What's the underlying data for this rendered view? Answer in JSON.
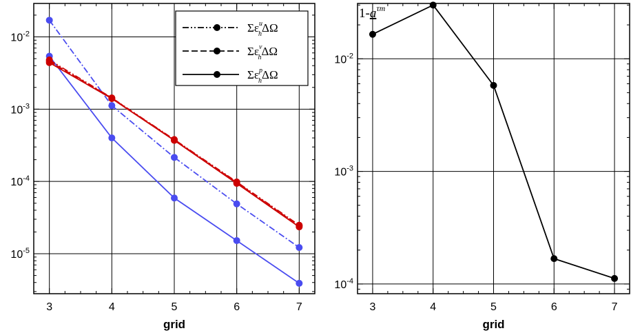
{
  "figure": {
    "colors": {
      "blue": "#4a4cf0",
      "red": "#cc0000",
      "black": "#000000"
    }
  },
  "chart_data": [
    {
      "type": "line",
      "x": [
        3,
        4,
        5,
        6,
        7
      ],
      "xlabel": "grid",
      "ylabel": "",
      "yscale": "log",
      "xlim": [
        2.75,
        7.25
      ],
      "ylim": [
        2.8e-06,
        0.029
      ],
      "x_ticks": [
        "3",
        "4",
        "5",
        "6",
        "7"
      ],
      "y_ticks": [
        {
          "base": "10",
          "exp": "-2",
          "value": 0.01
        },
        {
          "base": "10",
          "exp": "-3",
          "value": 0.001
        },
        {
          "base": "10",
          "exp": "-4",
          "value": 0.0001
        },
        {
          "base": "10",
          "exp": "-5",
          "value": 1e-05
        }
      ],
      "grid": true,
      "legend_position": "top-right",
      "legend": [
        {
          "style": "dashdotdot",
          "sym": "Σε",
          "sup": "u",
          "sub": "h",
          "tail": "ΔΩ"
        },
        {
          "style": "dashed",
          "sym": "Σε",
          "sup": "v",
          "sub": "h",
          "tail": "ΔΩ"
        },
        {
          "style": "solid",
          "sym": "Σε",
          "sup": "p",
          "sub": "h",
          "tail": "ΔΩ"
        }
      ],
      "series": [
        {
          "color": "#4a4cf0",
          "dash": "dashdot",
          "values": [
            0.017,
            0.00112,
            0.000215,
            4.9e-05,
            1.22e-05
          ]
        },
        {
          "color": "#4a4cf0",
          "dash": "solid",
          "values": [
            0.0054,
            0.0004,
            5.9e-05,
            1.52e-05,
            3.9e-06
          ]
        },
        {
          "color": "#cc0000",
          "dash": "dashdotdot",
          "values": [
            0.0048,
            0.00143,
            0.00038,
            9.85e-05,
            2.48e-05
          ]
        },
        {
          "color": "#cc0000",
          "dash": "dashed",
          "values": [
            0.0046,
            0.00142,
            0.000375,
            9.65e-05,
            2.42e-05
          ]
        },
        {
          "color": "#cc0000",
          "dash": "solid",
          "values": [
            0.0044,
            0.0014,
            0.00037,
            9.4e-05,
            2.35e-05
          ]
        }
      ]
    },
    {
      "type": "line",
      "x": [
        3,
        4,
        5,
        6,
        7
      ],
      "xlabel": "grid",
      "ylabel": {
        "base": "1-",
        "a": "a",
        "sup": "τm"
      },
      "yscale": "log",
      "xlim": [
        2.75,
        7.25
      ],
      "ylim": [
        8.2e-05,
        0.031
      ],
      "x_ticks": [
        "3",
        "4",
        "5",
        "6",
        "7"
      ],
      "y_ticks": [
        {
          "base": "10",
          "exp": "-2",
          "value": 0.01
        },
        {
          "base": "10",
          "exp": "-3",
          "value": 0.001
        },
        {
          "base": "10",
          "exp": "-4",
          "value": 0.0001
        }
      ],
      "grid": true,
      "series": [
        {
          "color": "#000000",
          "dash": "solid",
          "values": [
            0.0165,
            0.03,
            0.0058,
            0.000168,
            0.000112
          ]
        }
      ]
    }
  ]
}
